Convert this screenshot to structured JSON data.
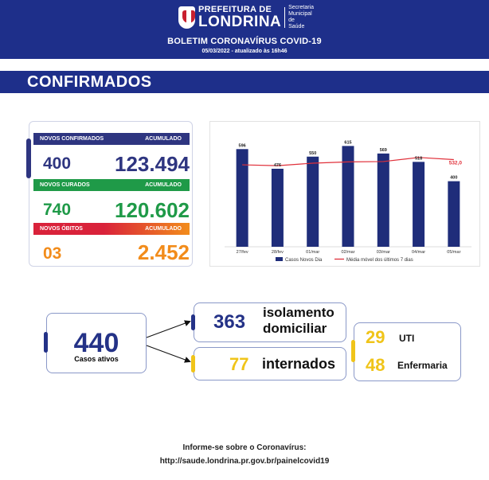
{
  "header": {
    "logo_top": "PREFEITURA DE",
    "logo_main": "LONDRINA",
    "logo_secretariat": [
      "Secretaria",
      "Municipal de",
      "Saúde"
    ],
    "title": "BOLETIM CORONAVÍRUS COVID-19",
    "date": "05/03/2022 - atualizado às 16h46"
  },
  "section_title": "CONFIRMADOS",
  "stats": {
    "confirmed": {
      "label": "NOVOS CONFIRMADOS",
      "acc_label": "ACUMULADO",
      "new": "400",
      "accumulated": "123.494",
      "color": "#2e3580"
    },
    "recovered": {
      "label": "NOVOS CURADOS",
      "acc_label": "ACUMULADO",
      "new": "740",
      "accumulated": "120.602",
      "color": "#1f9a48"
    },
    "deaths": {
      "label": "NOVOS ÓBITOS",
      "acc_label": "ACUMULADO",
      "new": "03",
      "accumulated": "2.452",
      "color": "#d9223a",
      "color2": "#f28c1b"
    }
  },
  "chart_data": {
    "type": "bar",
    "categories": [
      "27/fev",
      "28/fev",
      "01/mar",
      "02/mar",
      "03/mar",
      "04/mar",
      "05/mar"
    ],
    "series": [
      {
        "name": "Casos Novos Dia",
        "type": "bar",
        "values": [
          596,
          476,
          550,
          615,
          569,
          518,
          400
        ],
        "color": "#1f2d7a"
      },
      {
        "name": "Média móvel dos últimos 7 dias",
        "type": "line",
        "values": [
          500,
          495,
          510,
          518,
          520,
          545,
          532
        ],
        "color": "#e0303a"
      }
    ],
    "highlight_label": "532,0",
    "ylim": [
      0,
      680
    ]
  },
  "active": {
    "value": "440",
    "label": "Casos ativos"
  },
  "isolation": {
    "value": "363",
    "label_line1": "isolamento",
    "label_line2": "domiciliar"
  },
  "hospitalized": {
    "value": "77",
    "label": "internados"
  },
  "uti": {
    "value": "29",
    "label": "UTI"
  },
  "ward": {
    "value": "48",
    "label": "Enfermaria"
  },
  "colors": {
    "navy": "#1e2f8a",
    "blue": "#243287",
    "yellow": "#f0c419"
  },
  "footer": {
    "line1": "Informe-se sobre o Coronavírus:",
    "line2": "http://saude.londrina.pr.gov.br/painelcovid19"
  }
}
